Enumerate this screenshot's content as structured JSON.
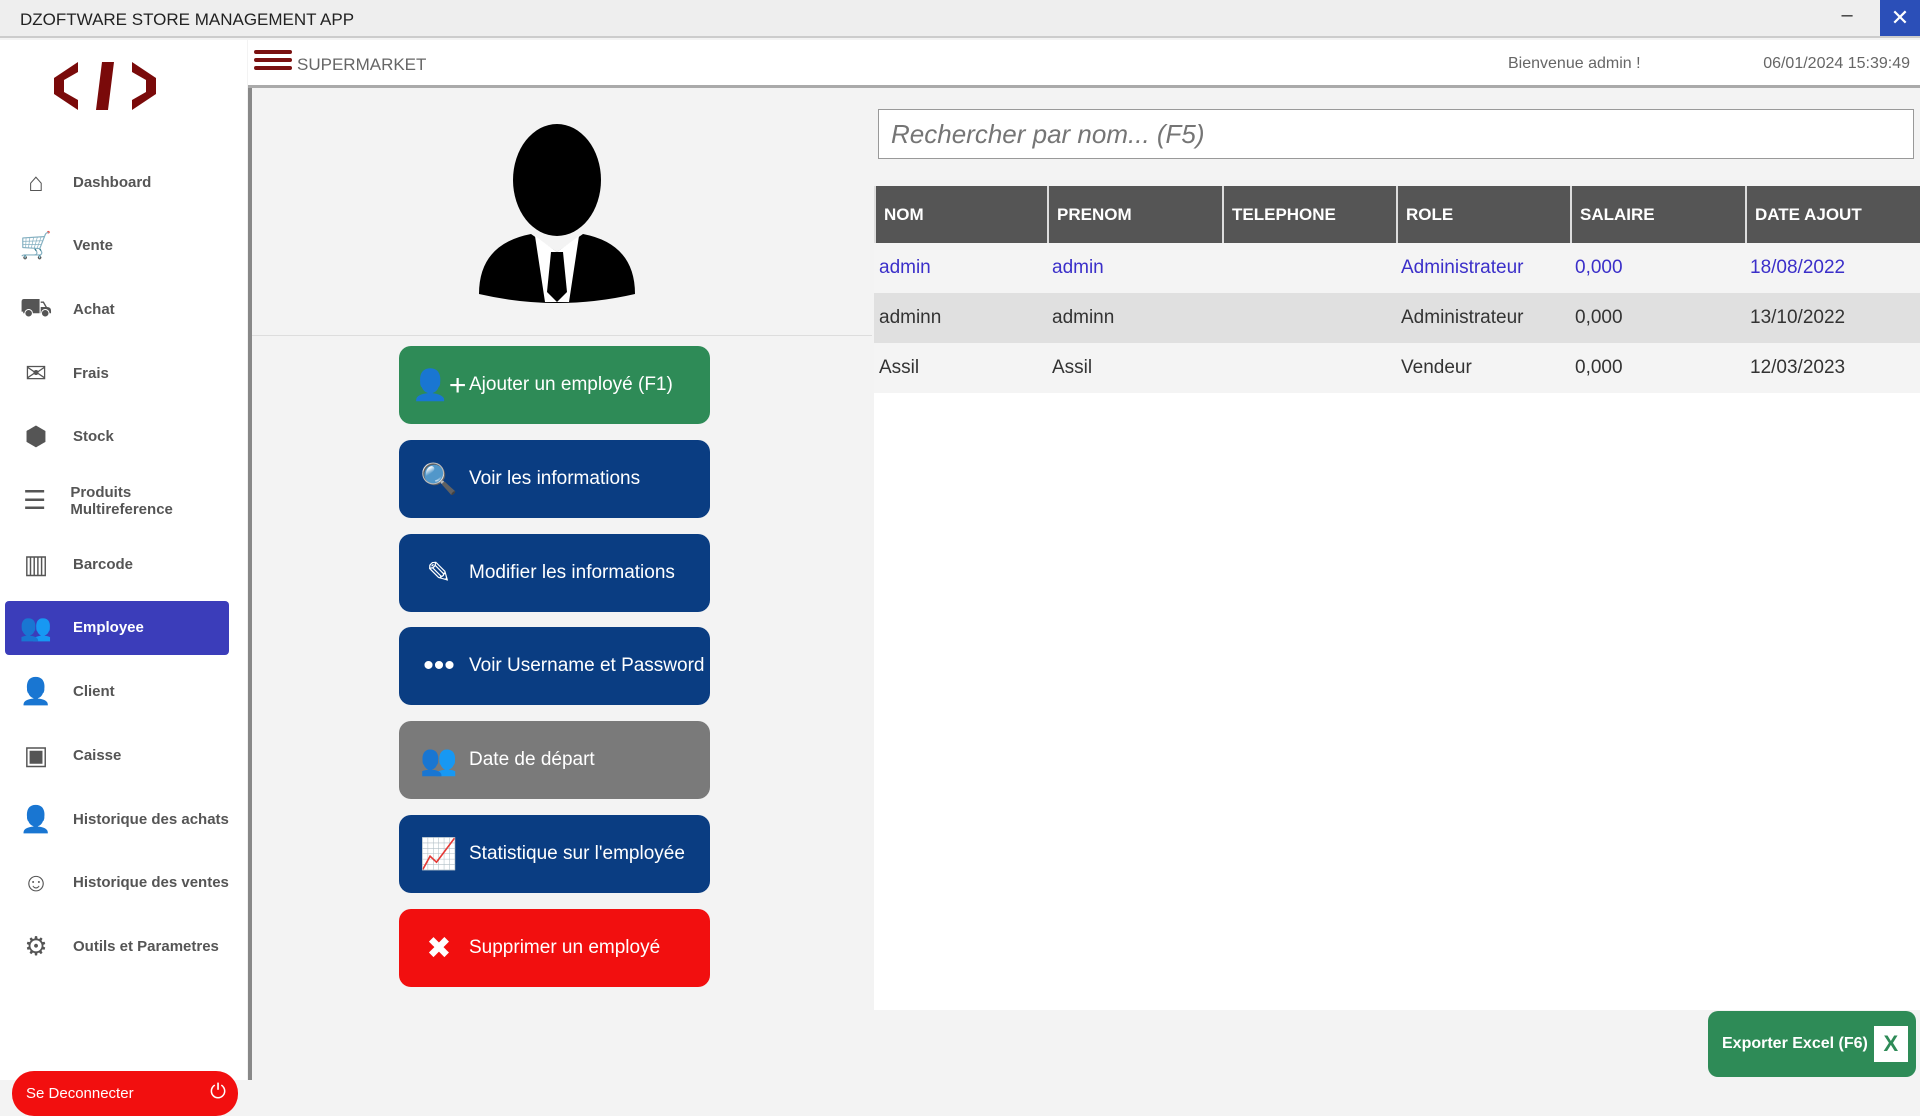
{
  "window": {
    "title": "DZOFTWARE STORE MANAGEMENT APP",
    "minimize": "–",
    "close": "✕"
  },
  "header": {
    "brand": "SUPERMARKET",
    "welcome": "Bienvenue  admin !",
    "datetime": "06/01/2024 15:39:49"
  },
  "sidebar": {
    "items": [
      {
        "label": "Dashboard",
        "icon": "⌂"
      },
      {
        "label": "Vente",
        "icon": "🛒"
      },
      {
        "label": "Achat",
        "icon": "⛟"
      },
      {
        "label": "Frais",
        "icon": "✉"
      },
      {
        "label": "Stock",
        "icon": "⬢"
      },
      {
        "label": "Produits Multireference",
        "icon": "☰"
      },
      {
        "label": "Barcode",
        "icon": "▥"
      },
      {
        "label": "Employee",
        "icon": "👥"
      },
      {
        "label": "Client",
        "icon": "👤"
      },
      {
        "label": "Caisse",
        "icon": "▣"
      },
      {
        "label": "Historique des achats",
        "icon": "👤"
      },
      {
        "label": "Historique des ventes",
        "icon": "☺"
      },
      {
        "label": "Outils et Parametres",
        "icon": "⚙"
      }
    ],
    "active": "Employee",
    "logout": "Se Deconnecter",
    "logout_icon": "⏻"
  },
  "actions": [
    {
      "label": "Ajouter un employé (F1)",
      "icon": "👤+",
      "color": "#2e8b57"
    },
    {
      "label": "Voir les informations",
      "icon": "🔍",
      "color": "#0a3d82"
    },
    {
      "label": "Modifier les informations",
      "icon": "✎",
      "color": "#0a3d82"
    },
    {
      "label": "Voir Username et Password",
      "icon": "•••",
      "color": "#0a3d82"
    },
    {
      "label": "Date de départ",
      "icon": "👥",
      "color": "#7a7a7a"
    },
    {
      "label": "Statistique sur l'employée",
      "icon": "📈",
      "color": "#0a3d82"
    },
    {
      "label": "Supprimer un employé",
      "icon": "✖",
      "color": "#f20f0f"
    }
  ],
  "search": {
    "placeholder": "Rechercher par nom... (F5)"
  },
  "table": {
    "columns": [
      "NOM",
      "PRENOM",
      "TELEPHONE",
      "ROLE",
      "SALAIRE",
      "DATE AJOUT"
    ],
    "rows": [
      [
        "admin",
        "admin",
        "",
        "Administrateur",
        "0,000",
        "18/08/2022"
      ],
      [
        "adminn",
        "adminn",
        "",
        "Administrateur",
        "0,000",
        "13/10/2022"
      ],
      [
        "Assil",
        "Assil",
        "",
        "Vendeur",
        "0,000",
        "12/03/2023"
      ]
    ],
    "selected_row": 0,
    "selected_color": "#3b2fc9"
  },
  "export": {
    "label": "Exporter Excel (F6)",
    "icon": "X"
  }
}
